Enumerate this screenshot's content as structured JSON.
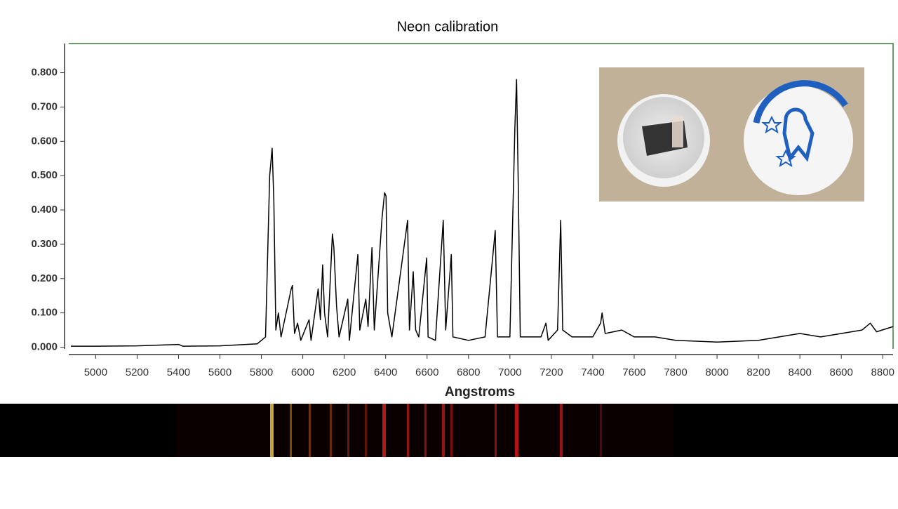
{
  "chart_data": {
    "type": "line",
    "title": "Neon calibration",
    "x_label": "Angstroms",
    "x": [
      4880,
      5000,
      5200,
      5400,
      5420,
      5600,
      5780,
      5820,
      5840,
      5852,
      5860,
      5870,
      5882,
      5895,
      5944,
      5950,
      5960,
      5975,
      5990,
      6030,
      6040,
      6074,
      6085,
      6096,
      6105,
      6120,
      6143,
      6150,
      6163,
      6175,
      6217,
      6225,
      6266,
      6275,
      6304,
      6315,
      6334,
      6345,
      6383,
      6395,
      6402,
      6410,
      6430,
      6506,
      6515,
      6533,
      6545,
      6560,
      6598,
      6605,
      6640,
      6678,
      6690,
      6717,
      6725,
      6800,
      6880,
      6929,
      6940,
      7000,
      7024,
      7032,
      7040,
      7050,
      7150,
      7174,
      7185,
      7230,
      7245,
      7255,
      7300,
      7400,
      7438,
      7445,
      7460,
      7540,
      7600,
      7700,
      7800,
      8000,
      8200,
      8400,
      8500,
      8600,
      8700,
      8740,
      8770,
      8850
    ],
    "series": [
      {
        "color": "#000000",
        "values": [
          0.003,
          0.003,
          0.004,
          0.008,
          0.003,
          0.004,
          0.01,
          0.03,
          0.5,
          0.58,
          0.43,
          0.05,
          0.1,
          0.03,
          0.17,
          0.18,
          0.04,
          0.07,
          0.02,
          0.08,
          0.02,
          0.17,
          0.08,
          0.24,
          0.1,
          0.03,
          0.33,
          0.29,
          0.12,
          0.03,
          0.14,
          0.02,
          0.27,
          0.05,
          0.14,
          0.06,
          0.29,
          0.05,
          0.38,
          0.45,
          0.44,
          0.1,
          0.03,
          0.37,
          0.05,
          0.22,
          0.05,
          0.03,
          0.26,
          0.03,
          0.02,
          0.37,
          0.05,
          0.27,
          0.03,
          0.02,
          0.03,
          0.34,
          0.03,
          0.03,
          0.64,
          0.78,
          0.49,
          0.03,
          0.03,
          0.07,
          0.02,
          0.05,
          0.37,
          0.05,
          0.03,
          0.03,
          0.07,
          0.1,
          0.04,
          0.05,
          0.03,
          0.03,
          0.02,
          0.015,
          0.02,
          0.04,
          0.03,
          0.04,
          0.05,
          0.07,
          0.045,
          0.06
        ]
      }
    ],
    "xlim": [
      4870,
      8850
    ],
    "ylim": [
      -0.005,
      0.885
    ],
    "xticks": [
      5000,
      5200,
      5400,
      5600,
      5800,
      6000,
      6200,
      6400,
      6600,
      6800,
      7000,
      7200,
      7400,
      7600,
      7800,
      8000,
      8200,
      8400,
      8600,
      8800
    ],
    "yticks": [
      {
        "value": 0,
        "label": "0.000"
      },
      {
        "value": 0.1,
        "label": "0.100"
      },
      {
        "value": 0.2,
        "label": "0.200"
      },
      {
        "value": 0.3,
        "label": "0.300"
      },
      {
        "value": 0.4,
        "label": "0.400"
      },
      {
        "value": 0.5,
        "label": "0.500"
      },
      {
        "value": 0.6,
        "label": "0.600"
      },
      {
        "value": 0.7,
        "label": "0.700"
      },
      {
        "value": 0.8,
        "label": "0.800"
      }
    ],
    "frame_color": "#3a7a3a"
  }
}
